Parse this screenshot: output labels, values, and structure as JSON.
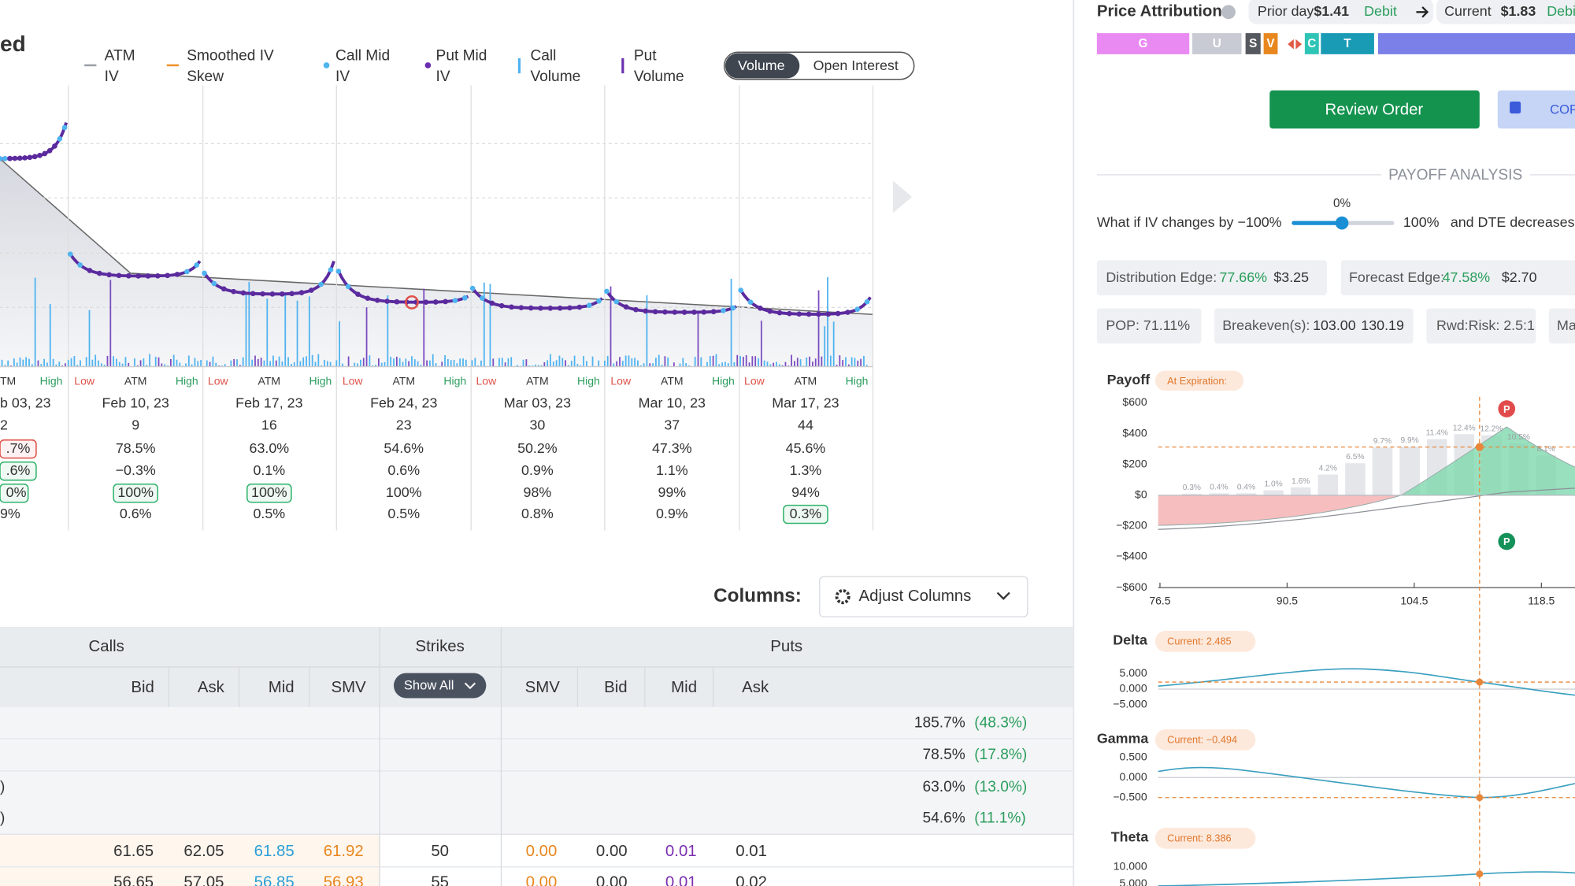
{
  "iv_panel": {
    "title_fragment": "ed",
    "legend": [
      {
        "lines": [
          "ATM",
          "IV"
        ],
        "color": "#9aa0a6",
        "marker": "dash"
      },
      {
        "lines": [
          "Smoothed IV",
          "Skew"
        ],
        "color": "#f0922b",
        "marker": "dash"
      },
      {
        "lines": [
          "Call Mid",
          "IV"
        ],
        "color": "#4fb3f0",
        "marker": "dot"
      },
      {
        "lines": [
          "Put Mid",
          "IV"
        ],
        "color": "#6a2fb0",
        "marker": "dot"
      },
      {
        "lines": [
          "Call",
          "Volume"
        ],
        "color": "#4fb3f0",
        "marker": "bar"
      },
      {
        "lines": [
          "Put",
          "Volume"
        ],
        "color": "#6a2fb0",
        "marker": "bar"
      }
    ],
    "toggle": [
      "Volume",
      "Open Interest"
    ],
    "range_labels": [
      "Low",
      "ATM",
      "High"
    ],
    "partial_column": {
      "range_labels": [
        "TM",
        "High"
      ],
      "cells": [
        "b 03, 23",
        "2",
        {
          "text": ".7%",
          "box": "#e0524a"
        },
        {
          "text": ".6%",
          "box": "#2fb36b"
        },
        {
          "text": "0%",
          "box": "#2fb36b"
        },
        "9%"
      ]
    },
    "columns": [
      {
        "cells": [
          "Feb 10, 23",
          "9",
          "78.5%",
          "−0.3%",
          {
            "text": "100%",
            "box": "#2fb36b"
          },
          "0.6%"
        ]
      },
      {
        "cells": [
          "Feb 17, 23",
          "16",
          "63.0%",
          "0.1%",
          {
            "text": "100%",
            "box": "#2fb36b"
          },
          "0.5%"
        ]
      },
      {
        "cells": [
          "Feb 24, 23",
          "23",
          "54.6%",
          "0.6%",
          "100%",
          "0.5%"
        ]
      },
      {
        "cells": [
          "Mar 03, 23",
          "30",
          "50.2%",
          "0.9%",
          "98%",
          "0.8%"
        ]
      },
      {
        "cells": [
          "Mar 10, 23",
          "37",
          "47.3%",
          "1.1%",
          "99%",
          "0.9%"
        ]
      },
      {
        "cells": [
          "Mar 17, 23",
          "44",
          "45.6%",
          "1.3%",
          "94%",
          {
            "text": "0.3%",
            "box": "#2fb36b"
          }
        ]
      }
    ]
  },
  "columns_control": {
    "label": "Columns:",
    "button": "Adjust Columns"
  },
  "table": {
    "groups": [
      "Calls",
      "Strikes",
      "Puts"
    ],
    "headers": [
      "Bid",
      "Ask",
      "Mid",
      "SMV",
      "Show All",
      "SMV",
      "Bid",
      "Mid",
      "Ask"
    ],
    "summary_rows": [
      {
        "iv": "185.7%",
        "change": "(48.3%)"
      },
      {
        "iv": "78.5%",
        "change": "(17.8%)"
      },
      {
        "left": ")",
        "iv": "63.0%",
        "change": "(13.0%)"
      },
      {
        "left": ")",
        "iv": "54.6%",
        "change": "(11.1%)"
      }
    ],
    "rows": [
      [
        "61.65",
        "62.05",
        "61.85",
        "61.92",
        "50",
        "0.00",
        "0.00",
        "0.01",
        "0.01"
      ],
      [
        "56.65",
        "57.05",
        "56.85",
        "56.93",
        "55",
        "0.00",
        "0.00",
        "0.01",
        "0.02"
      ]
    ],
    "cell_colors": [
      "#333333",
      "#333333",
      "#2a9fd6",
      "#e8871e",
      "#333333",
      "#e8871e",
      "#333333",
      "#7b2fb0",
      "#333333"
    ]
  },
  "attribution": {
    "title": "Price Attribution",
    "prior_label": "Prior day",
    "prior_value": "$1.41",
    "prior_type": "Debit",
    "current_label": "Current",
    "current_value": "$1.83",
    "current_type": "Debi",
    "segments": [
      {
        "label": "G",
        "color": "#e98af2"
      },
      {
        "label": "U",
        "color": "#c8cbd3"
      },
      {
        "label": "S",
        "color": "#55585e"
      },
      {
        "label": "V",
        "color": "#e8871e"
      },
      {
        "label": "C",
        "color": "#2ec4b6"
      },
      {
        "label": "T",
        "color": "#1a9bb5"
      }
    ]
  },
  "actions": {
    "review": "Review Order",
    "copy": "COP"
  },
  "payoff_analysis": {
    "heading": "PAYOFF ANALYSIS",
    "iv_change": "0%",
    "prompt": "What if IV changes by",
    "min": "−100%",
    "max": "100%",
    "dte_prompt": "and DTE decreases b"
  },
  "stats": [
    [
      "Distribution Edge:",
      "77.66%",
      "$3.25"
    ],
    [
      "Forecast Edge:",
      "47.58%",
      "$2.70"
    ],
    [
      "POP: 71.11%"
    ],
    [
      "Breakeven(s):",
      "103.00",
      "130.19"
    ],
    [
      "Rwd:Risk: 2.5:1"
    ],
    [
      "Ma"
    ]
  ],
  "payoff": {
    "title": "Payoff",
    "badge": "At Expiration:",
    "ylim": [
      -600,
      600
    ],
    "yticks": [
      {
        "value": 600,
        "label": "$600"
      },
      {
        "value": 400,
        "label": "$400"
      },
      {
        "value": 200,
        "label": "$200"
      },
      {
        "value": 0,
        "label": "$0"
      },
      {
        "value": -200,
        "label": "−$200"
      },
      {
        "value": -400,
        "label": "−$400"
      },
      {
        "value": -600,
        "label": "−$600"
      }
    ],
    "xlim": [
      76.3,
      122.2
    ],
    "xticks": [
      76.5,
      90.5,
      104.5,
      118.5
    ],
    "prob_x": [
      80,
      83,
      86,
      89,
      92,
      95,
      98,
      101,
      104,
      107,
      110,
      113,
      116,
      119
    ],
    "prob": [
      0.3,
      0.4,
      0.4,
      1.0,
      1.6,
      4.2,
      6.5,
      9.7,
      9.9,
      11.4,
      12.4,
      12.2,
      10.5,
      8.1
    ],
    "prob_labels": [
      "0.3%",
      "0.4%",
      "0.4%",
      "1.0%",
      "1.6%",
      "4.2%",
      "6.5%",
      "9.7%",
      "9.9%",
      "11.4%",
      "12.4%",
      "12.2%",
      "10.5%",
      "8.1%"
    ],
    "markers": [
      {
        "label": "P",
        "color": "#e14b4b"
      },
      {
        "label": "P",
        "color": "#15915a"
      }
    ]
  },
  "greeks": [
    {
      "name": "Delta",
      "badge": "Current: 2.485",
      "yticks": [
        {
          "value": 5,
          "label": "5.000"
        },
        {
          "value": 0,
          "label": "0.000"
        },
        {
          "value": -5,
          "label": "−5.000"
        }
      ]
    },
    {
      "name": "Gamma",
      "badge": "Current: −0.494",
      "yticks": [
        {
          "value": 0.5,
          "label": "0.500"
        },
        {
          "value": 0,
          "label": "0.000"
        },
        {
          "value": -0.5,
          "label": "−0.500"
        }
      ]
    },
    {
      "name": "Theta",
      "badge": "Current: 8.386",
      "yticks": [
        {
          "value": 10,
          "label": "10.000"
        },
        {
          "value": 5,
          "label": "5.000"
        }
      ]
    }
  ]
}
